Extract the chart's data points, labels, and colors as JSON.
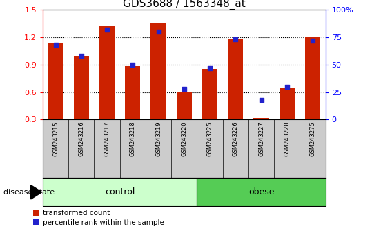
{
  "title": "GDS3688 / 1563348_at",
  "samples": [
    "GSM243215",
    "GSM243216",
    "GSM243217",
    "GSM243218",
    "GSM243219",
    "GSM243220",
    "GSM243225",
    "GSM243226",
    "GSM243227",
    "GSM243228",
    "GSM243275"
  ],
  "transformed_count": [
    1.13,
    1.0,
    1.33,
    0.88,
    1.35,
    0.6,
    0.85,
    1.18,
    0.32,
    0.65,
    1.21
  ],
  "percentile_rank": [
    68,
    58,
    82,
    50,
    80,
    28,
    47,
    73,
    18,
    30,
    72
  ],
  "ylim_left": [
    0.3,
    1.5
  ],
  "ylim_right": [
    0,
    100
  ],
  "yticks_left": [
    0.3,
    0.6,
    0.9,
    1.2,
    1.5
  ],
  "yticks_right": [
    0,
    25,
    50,
    75,
    100
  ],
  "ytick_labels_right": [
    "0",
    "25",
    "50",
    "75",
    "100%"
  ],
  "bar_color": "#cc2200",
  "dot_color": "#2222cc",
  "control_group_count": 6,
  "obese_group_count": 5,
  "control_color": "#ccffcc",
  "obese_color": "#55cc55",
  "label_transformed": "transformed count",
  "label_percentile": "percentile rank within the sample",
  "disease_label": "disease state",
  "control_label": "control",
  "obese_label": "obese",
  "title_fontsize": 11,
  "bar_width": 0.6,
  "tick_area_color": "#cccccc",
  "grid_yticks": [
    0.6,
    0.9,
    1.2
  ]
}
